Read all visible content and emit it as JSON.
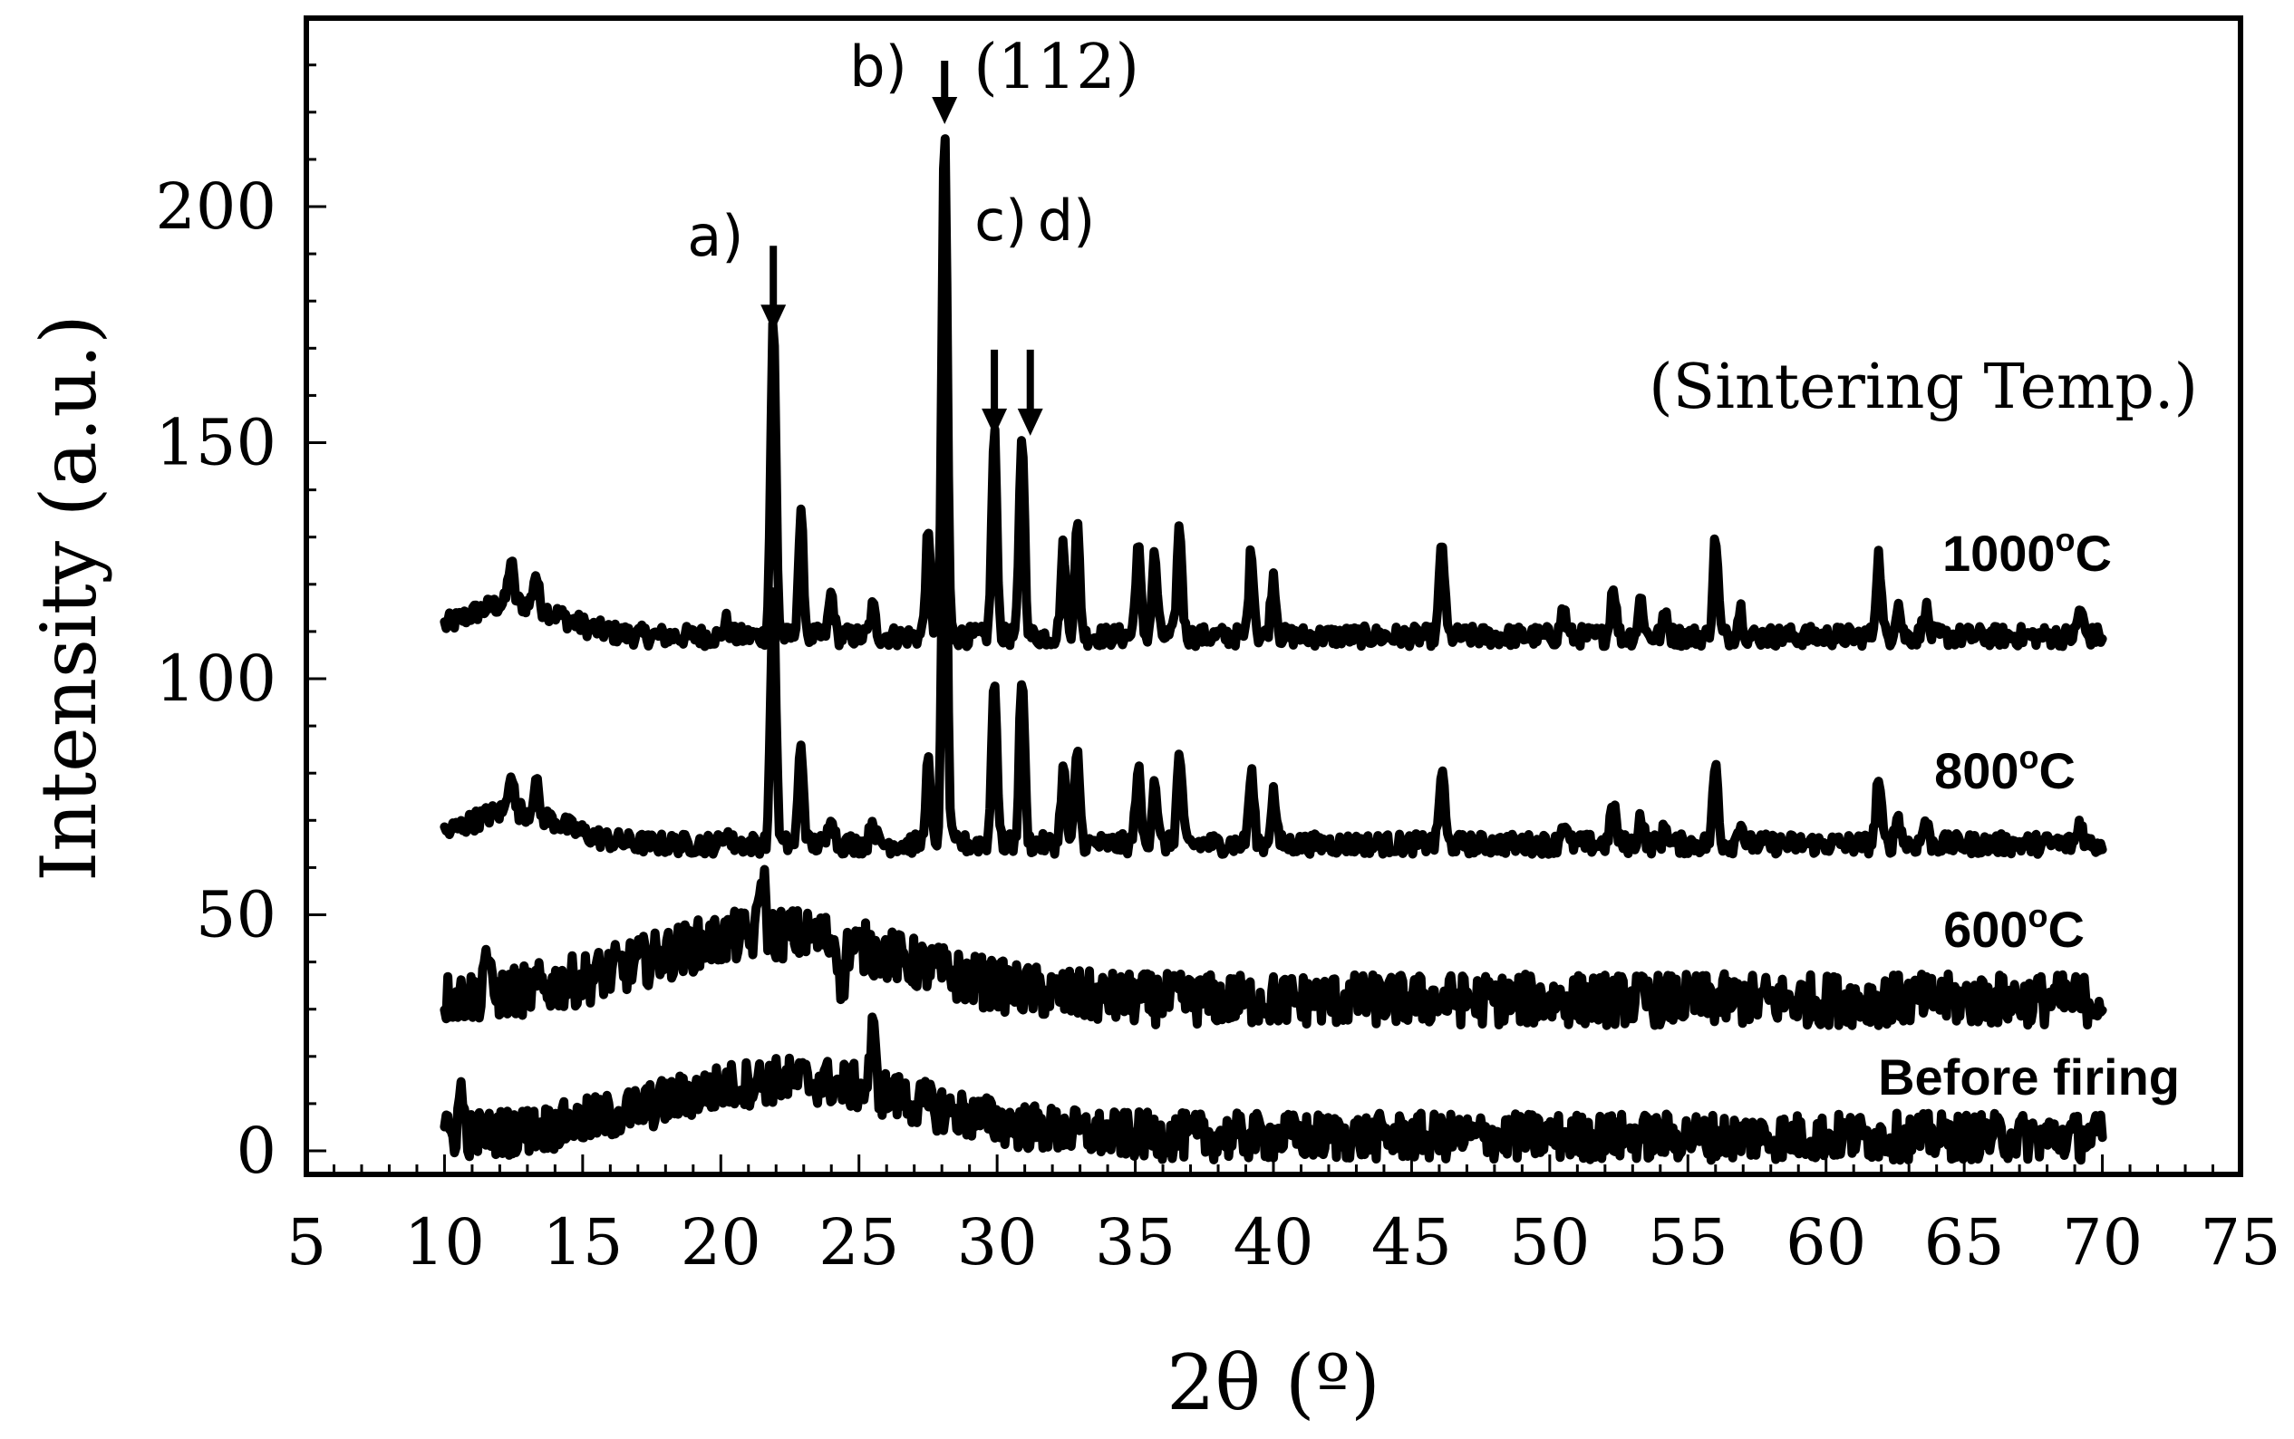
{
  "chart_data": {
    "type": "line",
    "title": "",
    "xlabel": "2θ (º)",
    "ylabel": "Intensity (a.u.)",
    "xlim": [
      5,
      75
    ],
    "ylim": [
      0,
      240
    ],
    "x_ticks": [
      5,
      10,
      15,
      20,
      25,
      30,
      35,
      40,
      45,
      50,
      55,
      60,
      65,
      70,
      75
    ],
    "y_ticks": [
      0,
      50,
      100,
      150,
      200
    ],
    "grid": false,
    "legend": "none",
    "series_labels_note": "",
    "header_annotation": "(Sintering Temp.)",
    "series": [
      {
        "name": "1000°C",
        "label_text": "1000",
        "label_sup": "o",
        "label_unit": "C",
        "x_range": [
          10,
          70
        ],
        "baseline": 109,
        "noise": 2.2,
        "hump": {
          "center": 12.5,
          "width": 2.4,
          "height": 7
        },
        "peaks": [
          [
            12.4,
            9
          ],
          [
            13.3,
            7
          ],
          [
            20.2,
            3
          ],
          [
            21.9,
            67
          ],
          [
            22.9,
            25
          ],
          [
            24.0,
            9
          ],
          [
            25.5,
            6
          ],
          [
            27.5,
            21
          ],
          [
            28.1,
            108
          ],
          [
            29.9,
            43
          ],
          [
            30.9,
            43
          ],
          [
            32.4,
            19
          ],
          [
            32.9,
            23
          ],
          [
            35.1,
            19
          ],
          [
            35.7,
            17
          ],
          [
            36.6,
            23
          ],
          [
            39.2,
            18
          ],
          [
            40.0,
            13
          ],
          [
            46.1,
            20
          ],
          [
            50.5,
            6
          ],
          [
            52.3,
            11
          ],
          [
            53.3,
            8
          ],
          [
            54.2,
            5
          ],
          [
            56.0,
            21
          ],
          [
            56.9,
            6
          ],
          [
            61.9,
            17
          ],
          [
            62.6,
            7
          ],
          [
            63.6,
            6
          ],
          [
            69.2,
            6
          ]
        ]
      },
      {
        "name": "800°C",
        "label_text": "800",
        "label_sup": "o",
        "label_unit": "C",
        "x_range": [
          10,
          70
        ],
        "baseline": 65,
        "noise": 2.2,
        "hump": {
          "center": 12.5,
          "width": 2.4,
          "height": 7
        },
        "peaks": [
          [
            12.4,
            9
          ],
          [
            13.3,
            7
          ],
          [
            20.2,
            3
          ],
          [
            21.9,
            55
          ],
          [
            22.9,
            21
          ],
          [
            24.0,
            7
          ],
          [
            25.5,
            5
          ],
          [
            27.5,
            17
          ],
          [
            28.1,
            91
          ],
          [
            29.9,
            36
          ],
          [
            30.9,
            36
          ],
          [
            32.4,
            16
          ],
          [
            32.9,
            19
          ],
          [
            35.1,
            16
          ],
          [
            35.7,
            14
          ],
          [
            36.6,
            19
          ],
          [
            39.2,
            15
          ],
          [
            40.0,
            11
          ],
          [
            46.1,
            16
          ],
          [
            50.5,
            5
          ],
          [
            52.3,
            9
          ],
          [
            53.3,
            6
          ],
          [
            54.2,
            4
          ],
          [
            56.0,
            17
          ],
          [
            56.9,
            5
          ],
          [
            61.9,
            14
          ],
          [
            62.6,
            6
          ],
          [
            63.6,
            5
          ],
          [
            69.2,
            5
          ]
        ]
      },
      {
        "name": "600°C",
        "label_text": "600",
        "label_sup": "o",
        "label_unit": "C",
        "x_range": [
          10,
          70
        ],
        "baseline": 32,
        "noise": 5.5,
        "hump": {
          "center": 22,
          "width": 6.5,
          "height": 14
        },
        "peaks": [
          [
            21.5,
            14
          ],
          [
            11.5,
            10
          ],
          [
            24.4,
            -9
          ]
        ]
      },
      {
        "name": "Before firing",
        "label_text": "Before firing",
        "label_sup": "",
        "label_unit": "",
        "x_range": [
          10,
          70
        ],
        "baseline": 3,
        "noise": 5,
        "hump": {
          "center": 22.5,
          "width": 6.5,
          "height": 12
        },
        "peaks": [
          [
            25.5,
            12
          ],
          [
            10.6,
            9
          ]
        ]
      }
    ],
    "annotations": [
      {
        "id": "a",
        "text": "a)",
        "x": 21.9,
        "arrow_y": 175,
        "sub": ""
      },
      {
        "id": "b",
        "text": "b)",
        "x": 28.1,
        "arrow_y": 219,
        "sub": "(112)"
      },
      {
        "id": "c",
        "text": "c)",
        "x": 29.9,
        "arrow_y": 153,
        "sub": ""
      },
      {
        "id": "d",
        "text": "d)",
        "x": 31.2,
        "arrow_y": 153,
        "sub": ""
      }
    ]
  }
}
